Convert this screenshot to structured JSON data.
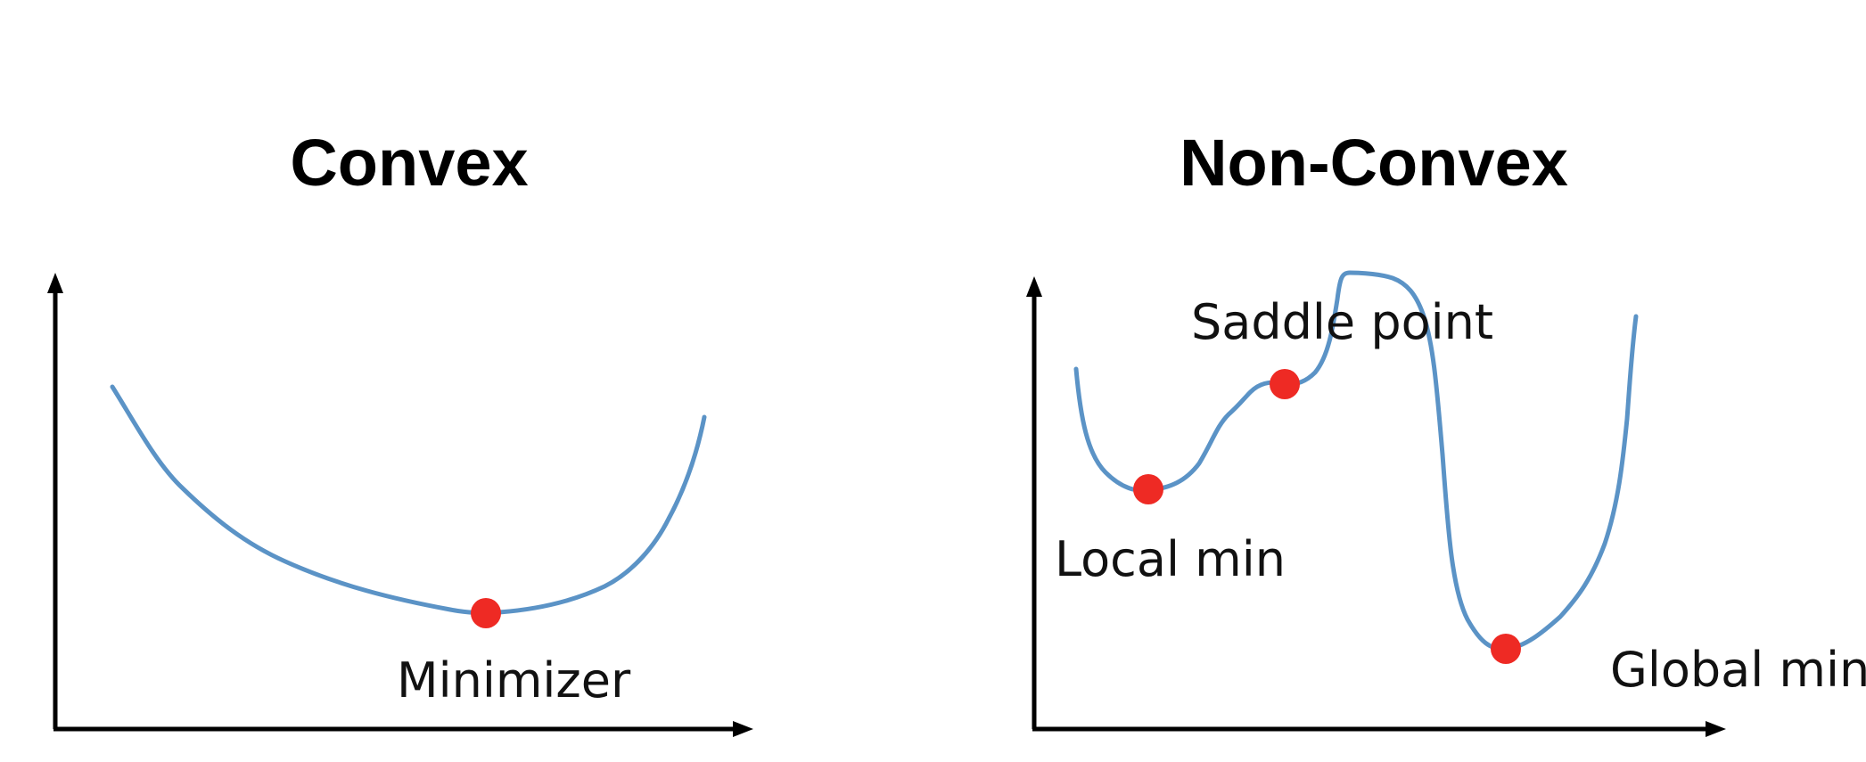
{
  "colors": {
    "curve": "#5b93c6",
    "point": "#ee2a24",
    "axis": "#000000"
  },
  "panels": {
    "convex": {
      "title": "Convex",
      "minimizer_label": "Minimizer"
    },
    "non_convex": {
      "title": "Non-Convex",
      "saddle_label": "Saddle point",
      "local_min_label": "Local min",
      "global_min_label": "Global min"
    }
  }
}
